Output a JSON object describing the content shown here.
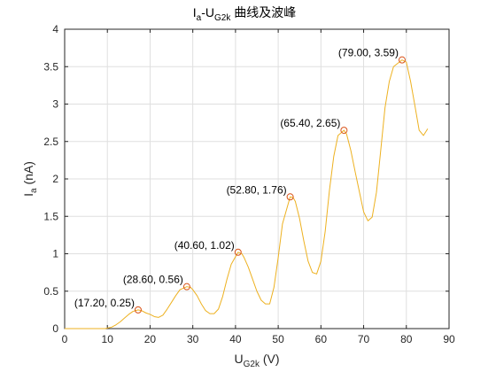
{
  "chart_data": {
    "type": "line",
    "title": "I_a-U_G2k 曲线及波峰",
    "title_parts": {
      "main": "I",
      "sub1": "a",
      "mid": "-U",
      "sub2": "G2k",
      "tail": " 曲线及波峰"
    },
    "xlabel_parts": {
      "main": "U",
      "sub": "G2k",
      "tail": " (V)"
    },
    "ylabel_parts": {
      "main": "I",
      "sub": "a",
      "tail": " (nA)"
    },
    "xlim": [
      0,
      90
    ],
    "ylim": [
      0,
      4
    ],
    "xticks": [
      0,
      10,
      20,
      30,
      40,
      50,
      60,
      70,
      80,
      90
    ],
    "yticks": [
      0,
      0.5,
      1,
      1.5,
      2,
      2.5,
      3,
      3.5,
      4
    ],
    "ytick_labels": [
      "0",
      "0.5",
      "1",
      "1.5",
      "2",
      "2.5",
      "3",
      "3.5",
      "4"
    ],
    "grid": true,
    "line_color": "#EDB120",
    "marker_color": "#D95319",
    "series": [
      {
        "x": [
          0,
          5,
          9.5,
          11,
          12,
          13,
          14,
          15,
          16,
          17.2,
          18,
          19,
          20,
          21,
          22,
          23,
          24,
          25,
          26,
          27,
          28.6,
          29.5,
          30,
          31,
          32,
          33,
          34,
          35,
          36,
          37,
          38,
          39,
          40.6,
          41.5,
          42,
          43,
          44,
          45,
          46,
          47,
          48,
          49,
          50,
          51,
          52.8,
          53.5,
          54,
          55,
          56,
          57,
          58,
          59,
          60,
          61,
          62,
          63,
          64,
          65.4,
          66,
          67,
          68,
          69,
          70,
          71,
          72,
          73,
          74,
          75,
          76,
          77,
          79,
          80,
          81,
          82,
          83,
          84,
          85
        ],
        "y": [
          0,
          0,
          0,
          0.02,
          0.05,
          0.09,
          0.14,
          0.19,
          0.23,
          0.25,
          0.24,
          0.21,
          0.19,
          0.16,
          0.15,
          0.18,
          0.26,
          0.35,
          0.44,
          0.52,
          0.56,
          0.55,
          0.52,
          0.44,
          0.33,
          0.24,
          0.2,
          0.2,
          0.26,
          0.43,
          0.66,
          0.86,
          1.02,
          1,
          0.95,
          0.82,
          0.66,
          0.5,
          0.38,
          0.33,
          0.33,
          0.55,
          0.95,
          1.4,
          1.76,
          1.75,
          1.7,
          1.47,
          1.17,
          0.9,
          0.75,
          0.73,
          0.9,
          1.3,
          1.85,
          2.3,
          2.58,
          2.65,
          2.6,
          2.38,
          2.1,
          1.83,
          1.56,
          1.44,
          1.49,
          1.82,
          2.38,
          2.95,
          3.3,
          3.5,
          3.59,
          3.56,
          3.3,
          2.98,
          2.65,
          2.58,
          2.67
        ]
      }
    ],
    "peaks": [
      {
        "x": 17.2,
        "y": 0.25,
        "label": "(17.20, 0.25)"
      },
      {
        "x": 28.6,
        "y": 0.56,
        "label": "(28.60, 0.56)"
      },
      {
        "x": 40.6,
        "y": 1.02,
        "label": "(40.60, 1.02)"
      },
      {
        "x": 52.8,
        "y": 1.76,
        "label": "(52.80, 1.76)"
      },
      {
        "x": 65.4,
        "y": 2.65,
        "label": "(65.40, 2.65)"
      },
      {
        "x": 79.0,
        "y": 3.59,
        "label": "(79.00, 3.59)"
      }
    ]
  }
}
